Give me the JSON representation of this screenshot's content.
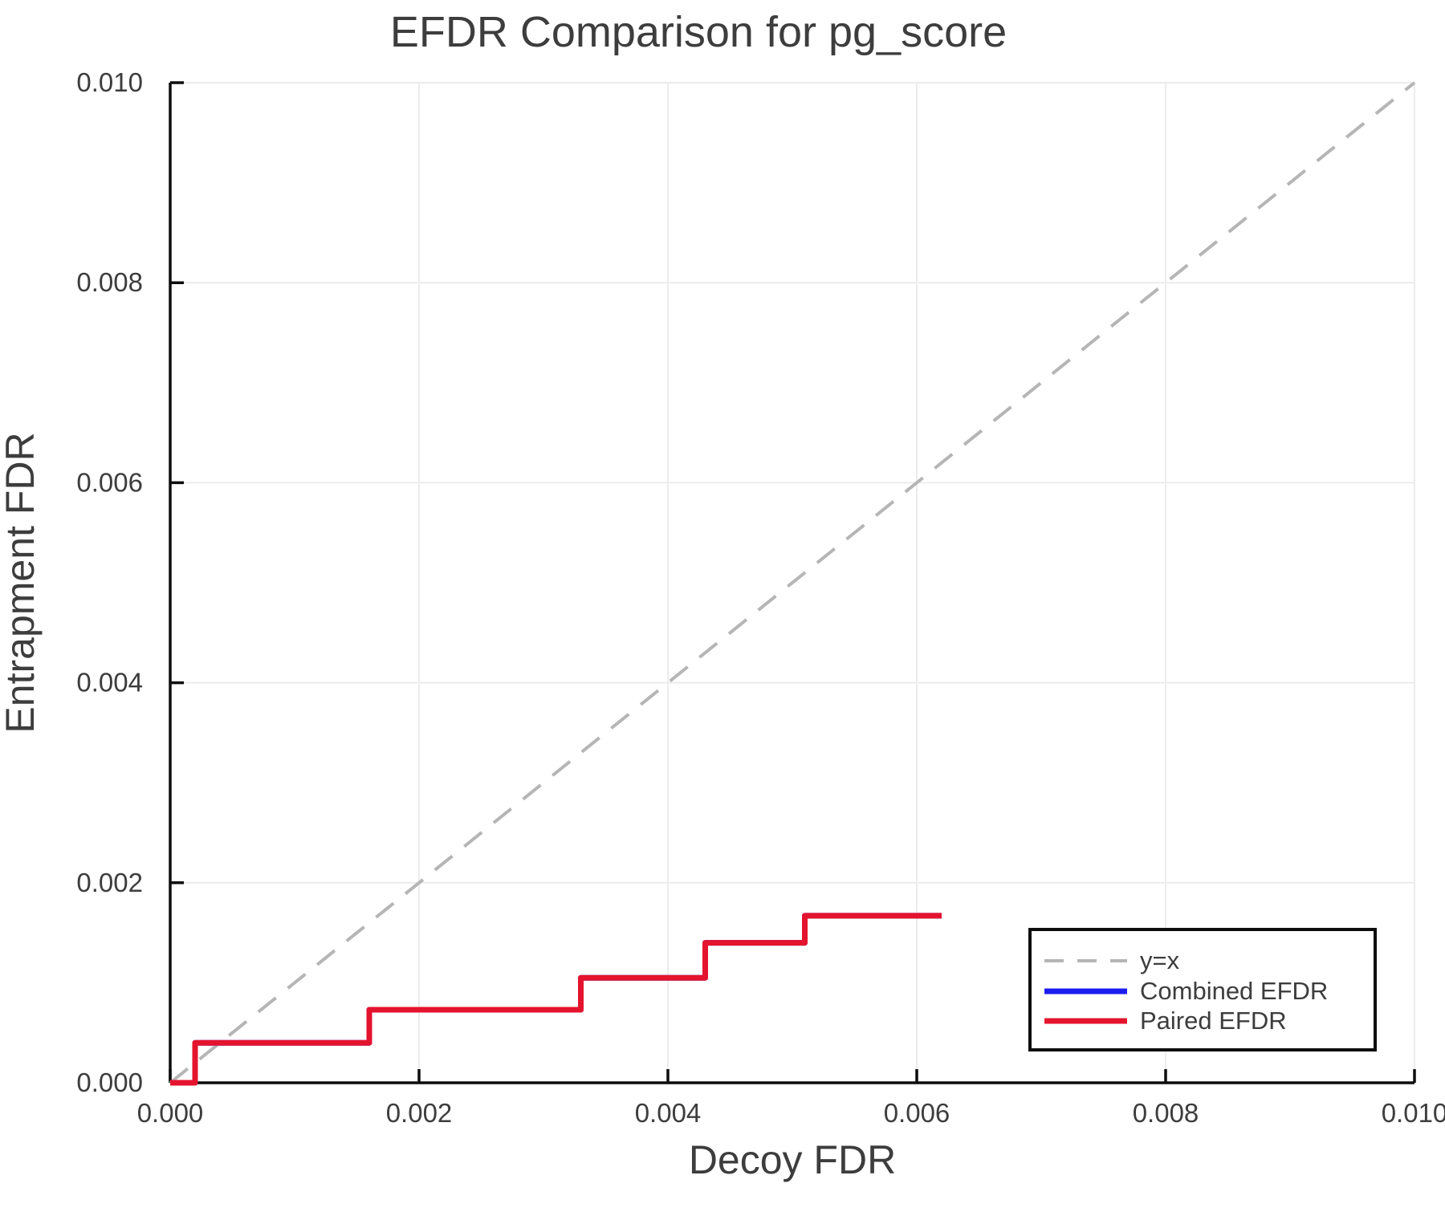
{
  "chart_data": {
    "type": "line",
    "title": "EFDR Comparison for pg_score",
    "xlabel": "Decoy FDR",
    "ylabel": "Entrapment FDR",
    "xlim": [
      0.0,
      0.01
    ],
    "ylim": [
      0.0,
      0.01
    ],
    "xticks": [
      0.0,
      0.002,
      0.004,
      0.006,
      0.008,
      0.01
    ],
    "xtick_labels": [
      "0.000",
      "0.002",
      "0.004",
      "0.006",
      "0.008",
      "0.010"
    ],
    "yticks": [
      0.0,
      0.002,
      0.004,
      0.006,
      0.008,
      0.01
    ],
    "ytick_labels": [
      "0.000",
      "0.002",
      "0.004",
      "0.006",
      "0.008",
      "0.010"
    ],
    "grid": true,
    "legend_position": "lower right",
    "colors": {
      "grid": "#ececec",
      "spine": "#0d0d0d",
      "text": "#3d3d3d",
      "legend_border": "#0d0d0d",
      "legend_background": "#ffffff"
    },
    "series": [
      {
        "name": "y=x",
        "style": "dashed",
        "color": "#b5b5b5",
        "points": [
          [
            0.0,
            0.0
          ],
          [
            0.01,
            0.01
          ]
        ]
      },
      {
        "name": "Combined EFDR",
        "style": "solid",
        "color": "#1c1cf0",
        "points": [
          [
            0.0,
            0.0
          ],
          [
            0.0002,
            0.0
          ],
          [
            0.0002,
            0.0004
          ],
          [
            0.0016,
            0.0004
          ],
          [
            0.0016,
            0.00073
          ],
          [
            0.0033,
            0.00073
          ],
          [
            0.0033,
            0.00105
          ],
          [
            0.0043,
            0.00105
          ],
          [
            0.0043,
            0.0014
          ],
          [
            0.0051,
            0.0014
          ],
          [
            0.0051,
            0.00167
          ],
          [
            0.0062,
            0.00167
          ]
        ]
      },
      {
        "name": "Paired EFDR",
        "style": "solid",
        "color": "#e4142e",
        "points": [
          [
            0.0,
            0.0
          ],
          [
            0.0002,
            0.0
          ],
          [
            0.0002,
            0.0004
          ],
          [
            0.0016,
            0.0004
          ],
          [
            0.0016,
            0.00073
          ],
          [
            0.0033,
            0.00073
          ],
          [
            0.0033,
            0.00105
          ],
          [
            0.0043,
            0.00105
          ],
          [
            0.0043,
            0.0014
          ],
          [
            0.0051,
            0.0014
          ],
          [
            0.0051,
            0.00167
          ],
          [
            0.0062,
            0.00167
          ]
        ]
      }
    ]
  }
}
